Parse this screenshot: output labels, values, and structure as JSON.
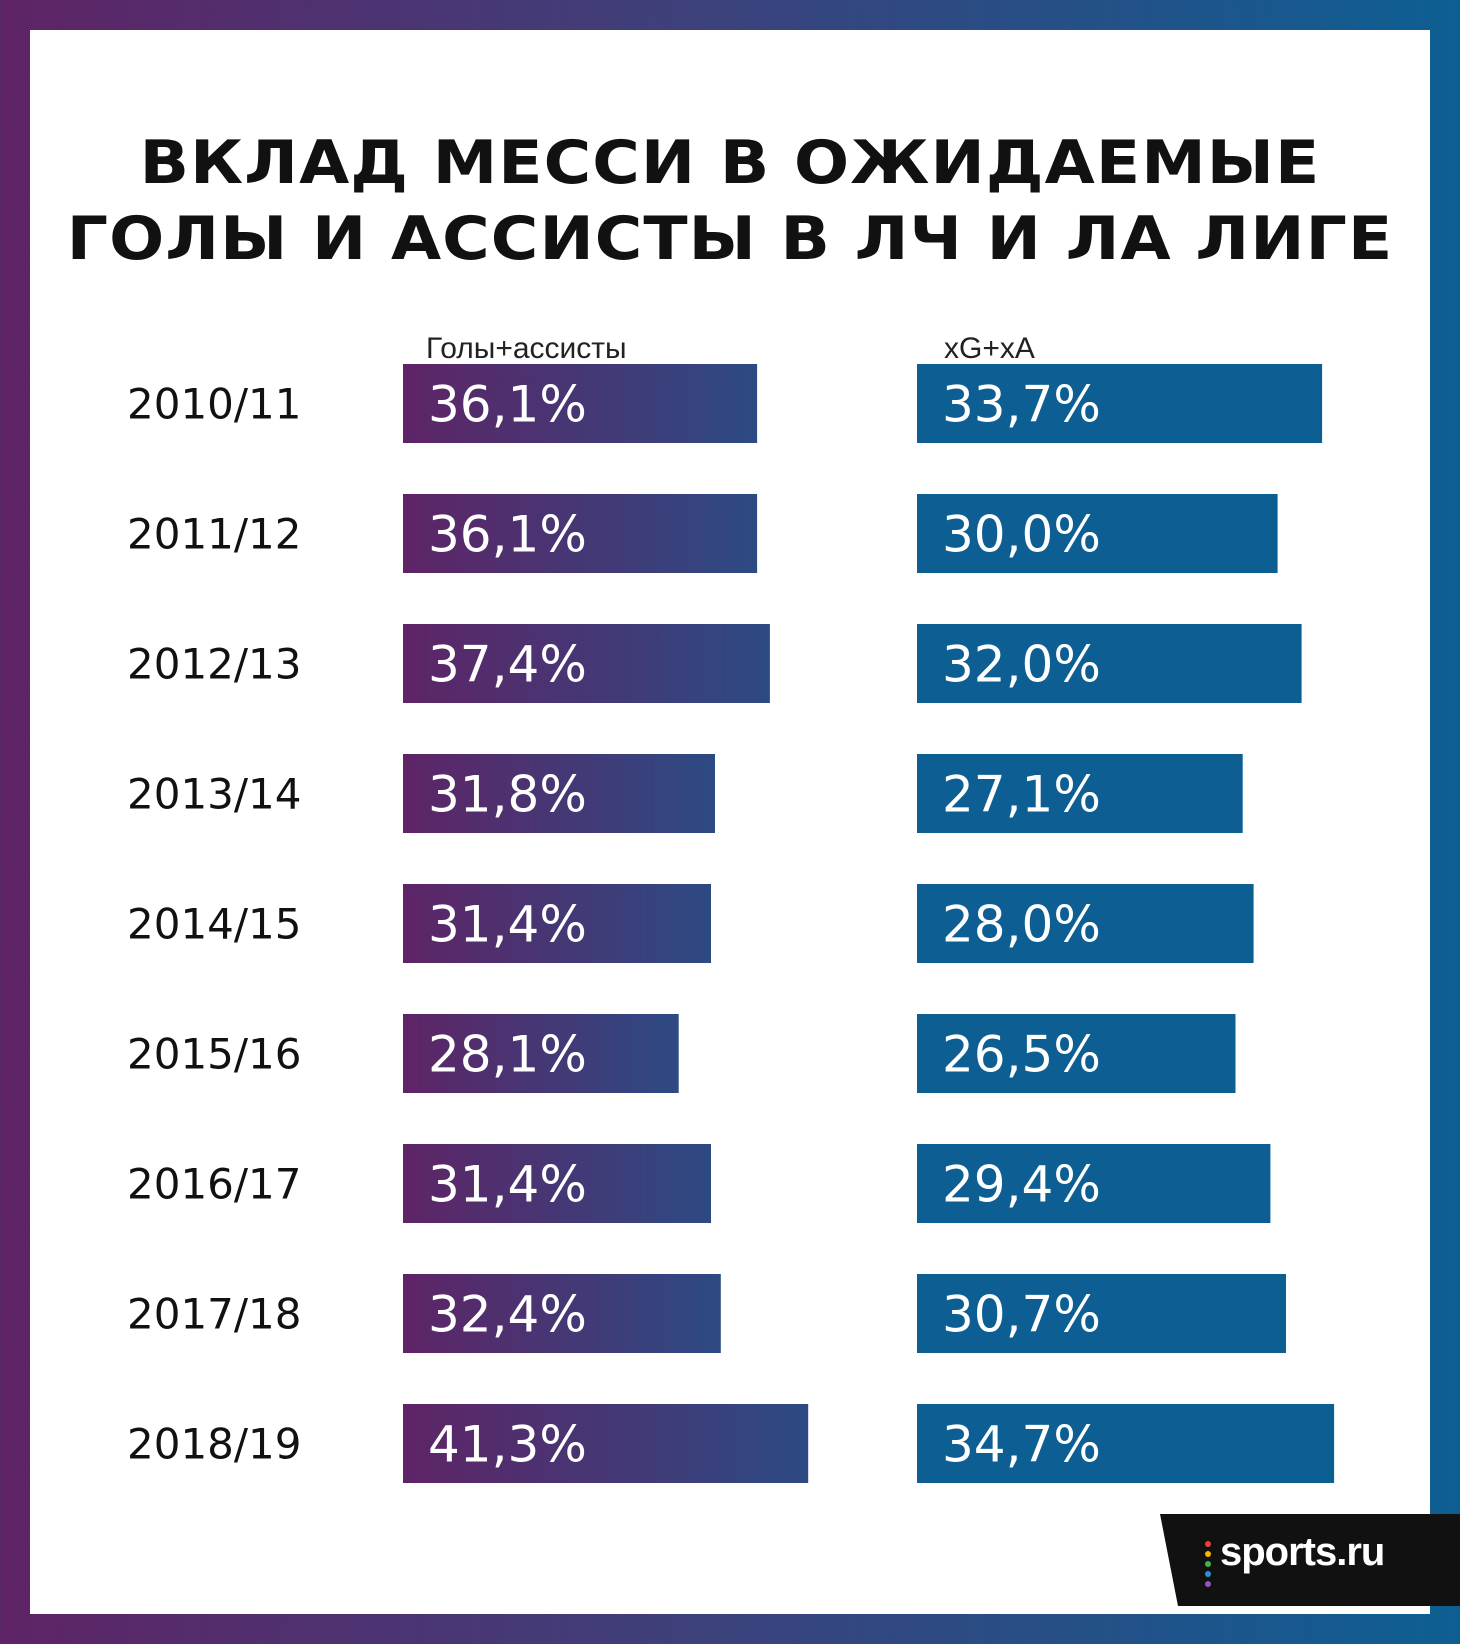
{
  "chart_data": {
    "type": "bar",
    "orientation": "horizontal",
    "title": "ВКЛАД МЕССИ В ОЖИДАЕМЫЕ ГОЛЫ И АССИСТЫ В ЛЧ И ЛА ЛИГЕ",
    "title_lines": [
      "ВКЛАД МЕССИ В ОЖИДАЕМЫЕ",
      "ГОЛЫ И АССИСТЫ В ЛЧ И ЛА ЛИГЕ"
    ],
    "categories": [
      "2010/11",
      "2011/12",
      "2012/13",
      "2013/14",
      "2014/15",
      "2015/16",
      "2016/17",
      "2017/18",
      "2018/19"
    ],
    "series": [
      {
        "name": "Голы+ассисты",
        "values": [
          36.1,
          36.1,
          37.4,
          31.8,
          31.4,
          28.1,
          31.4,
          32.4,
          41.3
        ],
        "labels": [
          "36,1%",
          "36,1%",
          "37,4%",
          "31,8%",
          "31,4%",
          "28,1%",
          "31,4%",
          "32,4%",
          "41,3%"
        ],
        "color_start": "#5e2466",
        "color_end": "#2d4a83"
      },
      {
        "name": "xG+xA",
        "values": [
          33.7,
          30.0,
          32.0,
          27.1,
          28.0,
          26.5,
          29.4,
          30.7,
          34.7
        ],
        "labels": [
          "33,7%",
          "30,0%",
          "32,0%",
          "27,1%",
          "28,0%",
          "26,5%",
          "29,4%",
          "30,7%",
          "34,7%"
        ],
        "color": "#0d5f93"
      }
    ],
    "unit": "%",
    "grid": false
  },
  "source": {
    "logo_text": "sports.ru",
    "logo_icon": "sports-ru-dots-icon"
  },
  "colors": {
    "border_start": "#5e2466",
    "border_end": "#0d5f93",
    "background": "#ffffff",
    "text": "#111111",
    "logo_background": "#111111"
  }
}
